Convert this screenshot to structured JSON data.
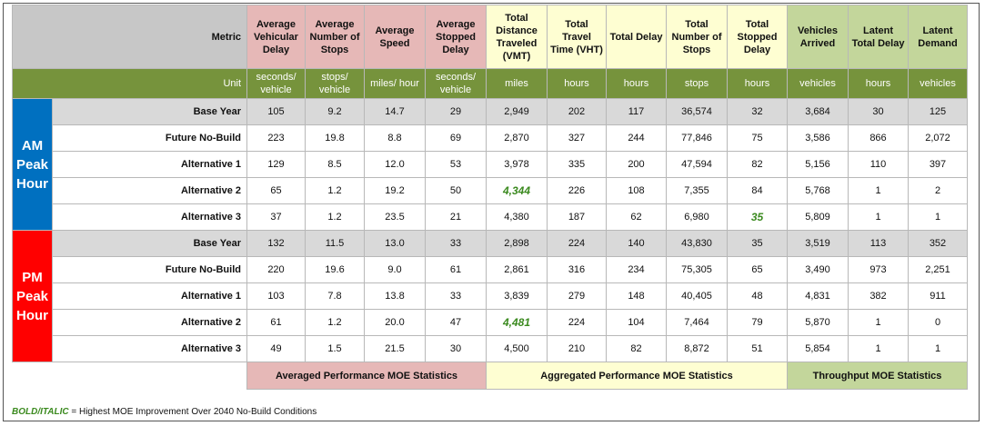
{
  "header": {
    "metric_label": "Metric",
    "unit_label": "Unit",
    "columns": [
      {
        "name": "Average Vehicular Delay",
        "unit": "seconds/ vehicle",
        "group": "pink"
      },
      {
        "name": "Average Number of Stops",
        "unit": "stops/ vehicle",
        "group": "pink"
      },
      {
        "name": "Average Speed",
        "unit": "miles/ hour",
        "group": "pink"
      },
      {
        "name": "Average Stopped Delay",
        "unit": "seconds/ vehicle",
        "group": "pink"
      },
      {
        "name": "Total Distance Traveled (VMT)",
        "unit": "miles",
        "group": "yellow"
      },
      {
        "name": "Total Travel Time (VHT)",
        "unit": "hours",
        "group": "yellow"
      },
      {
        "name": "Total Delay",
        "unit": "hours",
        "group": "yellow"
      },
      {
        "name": "Total Number of Stops",
        "unit": "stops",
        "group": "yellow"
      },
      {
        "name": "Total Stopped Delay",
        "unit": "hours",
        "group": "yellow"
      },
      {
        "name": "Vehicles Arrived",
        "unit": "vehicles",
        "group": "green"
      },
      {
        "name": "Latent Total Delay",
        "unit": "hours",
        "group": "green"
      },
      {
        "name": "Latent Demand",
        "unit": "vehicles",
        "group": "green"
      }
    ]
  },
  "periods": [
    {
      "label": [
        "AM",
        "Peak",
        "Hour"
      ],
      "color": "#0070c0",
      "rows": [
        {
          "label": "Base Year",
          "values": [
            "105",
            "9.2",
            "14.7",
            "29",
            "2,949",
            "202",
            "117",
            "36,574",
            "32",
            "3,684",
            "30",
            "125"
          ],
          "best": []
        },
        {
          "label": "Future No-Build",
          "values": [
            "223",
            "19.8",
            "8.8",
            "69",
            "2,870",
            "327",
            "244",
            "77,846",
            "75",
            "3,586",
            "866",
            "2,072"
          ],
          "best": []
        },
        {
          "label": "Alternative 1",
          "values": [
            "129",
            "8.5",
            "12.0",
            "53",
            "3,978",
            "335",
            "200",
            "47,594",
            "82",
            "5,156",
            "110",
            "397"
          ],
          "best": []
        },
        {
          "label": "Alternative 2",
          "values": [
            "65",
            "1.2",
            "19.2",
            "50",
            "4,344",
            "226",
            "108",
            "7,355",
            "84",
            "5,768",
            "1",
            "2"
          ],
          "best": [
            4
          ]
        },
        {
          "label": "Alternative 3",
          "values": [
            "37",
            "1.2",
            "23.5",
            "21",
            "4,380",
            "187",
            "62",
            "6,980",
            "35",
            "5,809",
            "1",
            "1"
          ],
          "best": [
            8
          ]
        }
      ]
    },
    {
      "label": [
        "PM",
        "Peak",
        "Hour"
      ],
      "color": "#ff0000",
      "rows": [
        {
          "label": "Base Year",
          "values": [
            "132",
            "11.5",
            "13.0",
            "33",
            "2,898",
            "224",
            "140",
            "43,830",
            "35",
            "3,519",
            "113",
            "352"
          ],
          "best": []
        },
        {
          "label": "Future No-Build",
          "values": [
            "220",
            "19.6",
            "9.0",
            "61",
            "2,861",
            "316",
            "234",
            "75,305",
            "65",
            "3,490",
            "973",
            "2,251"
          ],
          "best": []
        },
        {
          "label": "Alternative 1",
          "values": [
            "103",
            "7.8",
            "13.8",
            "33",
            "3,839",
            "279",
            "148",
            "40,405",
            "48",
            "4,831",
            "382",
            "911"
          ],
          "best": []
        },
        {
          "label": "Alternative 2",
          "values": [
            "61",
            "1.2",
            "20.0",
            "47",
            "4,481",
            "224",
            "104",
            "7,464",
            "79",
            "5,870",
            "1",
            "0"
          ],
          "best": [
            4
          ]
        },
        {
          "label": "Alternative 3",
          "values": [
            "49",
            "1.5",
            "21.5",
            "30",
            "4,500",
            "210",
            "82",
            "8,872",
            "51",
            "5,854",
            "1",
            "1"
          ],
          "best": []
        }
      ]
    }
  ],
  "footer": {
    "averaged": "Averaged Performance MOE Statistics",
    "aggregated": "Aggregated Performance MOE Statistics",
    "throughput": "Throughput MOE Statistics"
  },
  "note": {
    "tag": "BOLD/ITALIC",
    "text": " = Highest MOE Improvement Over 2040 No-Build Conditions"
  },
  "colors": {
    "am": "#0070c0",
    "pm": "#ff0000",
    "pink": "#e6b8b7",
    "yellow": "#fefed2",
    "green": "#c3d69b",
    "olive": "#76933c",
    "best_text": "#3b8a1f"
  }
}
